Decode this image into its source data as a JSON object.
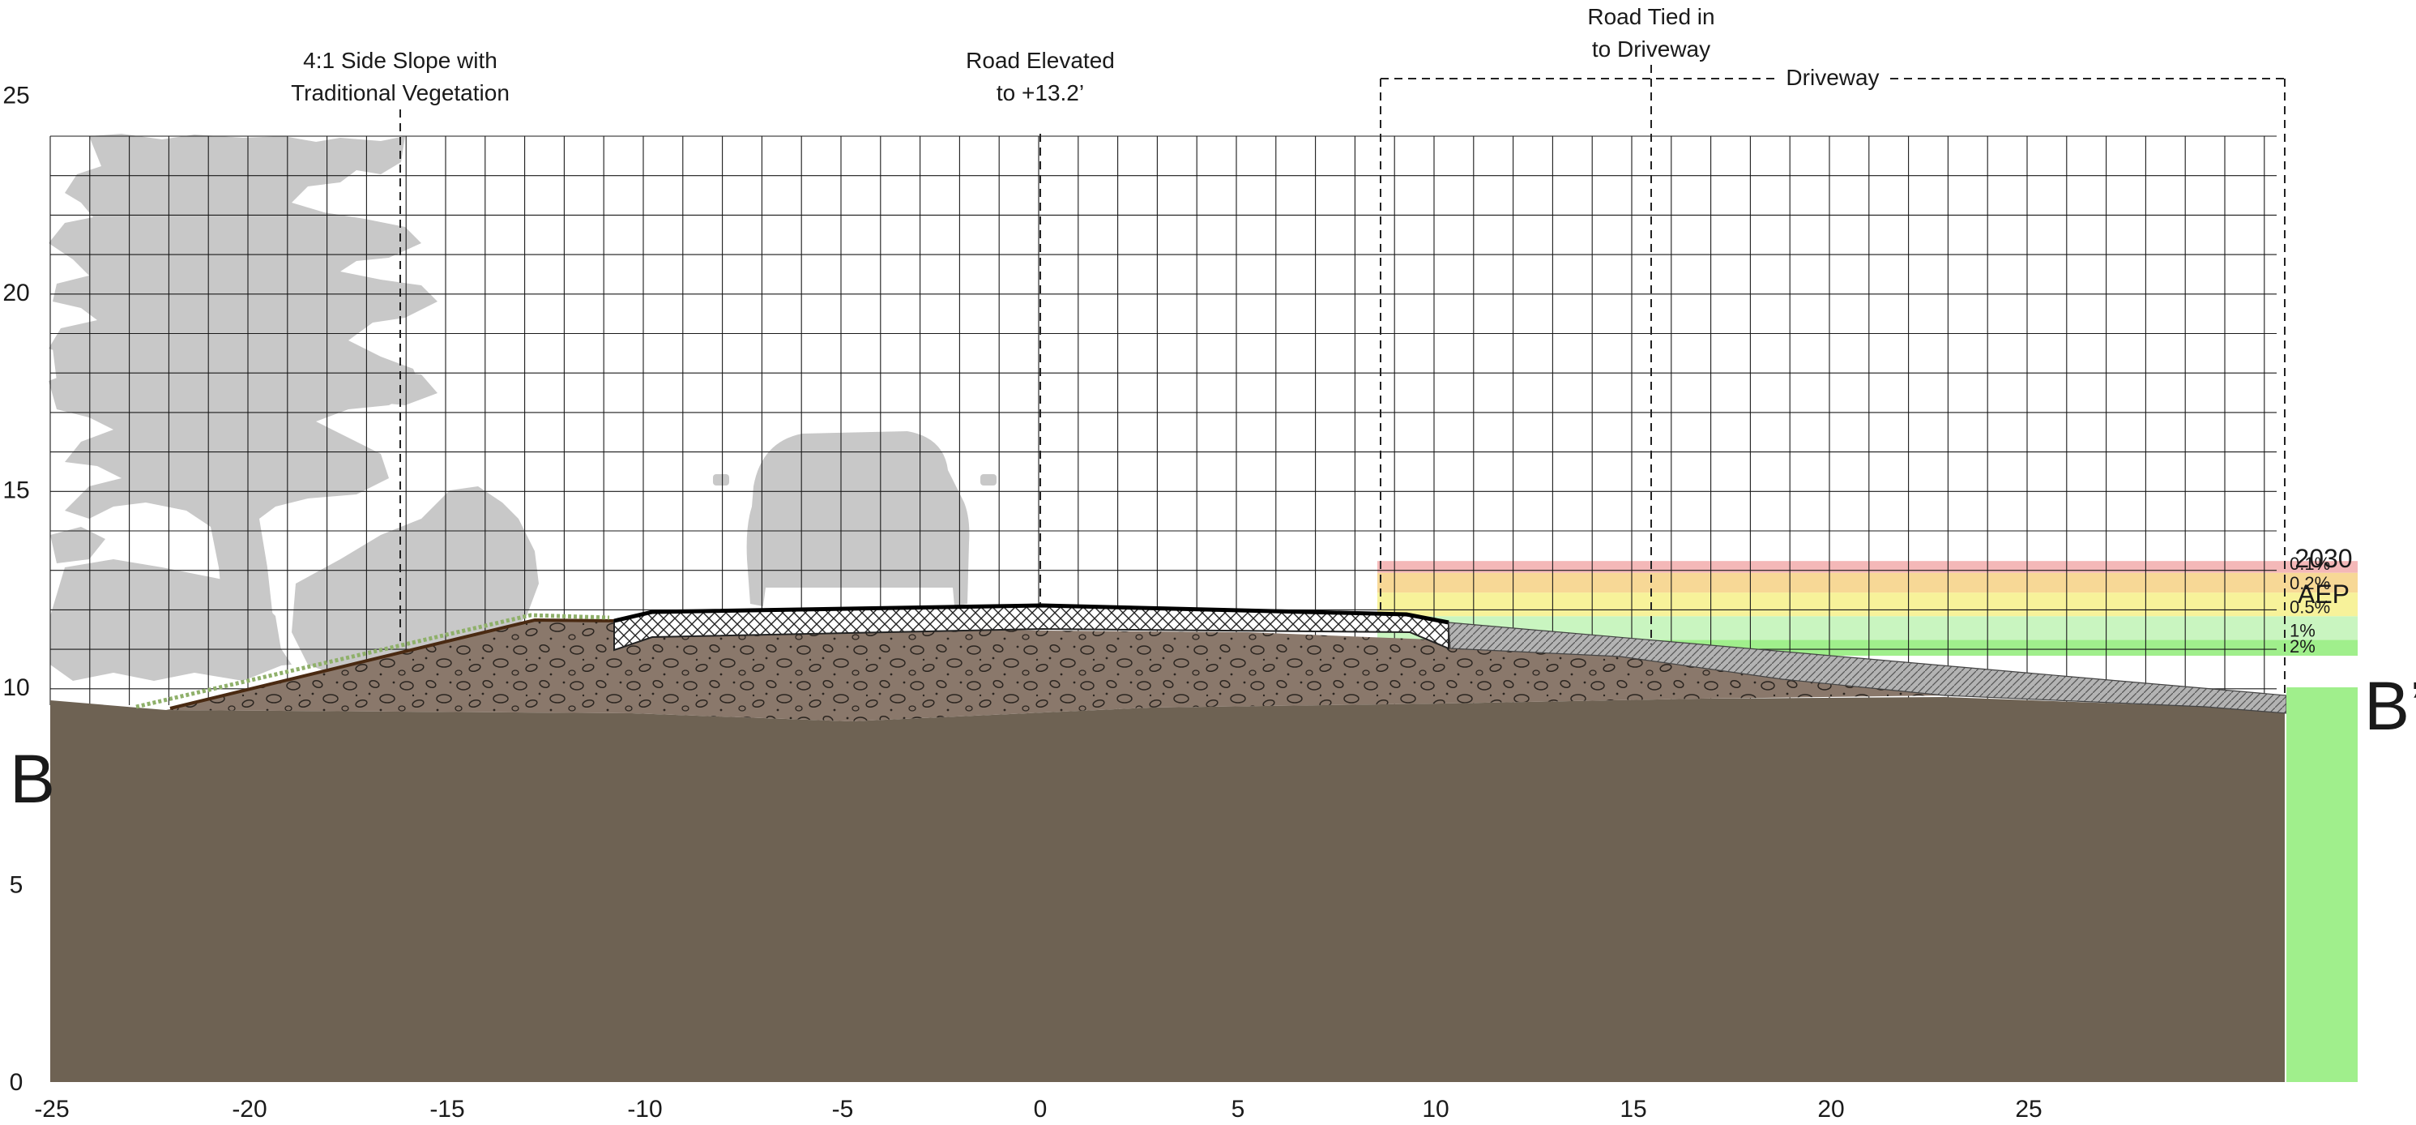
{
  "axes": {
    "x_ticks": [
      "-25",
      "-20",
      "-15",
      "-10",
      "-5",
      "0",
      "5",
      "10",
      "15",
      "20",
      "25"
    ],
    "y_ticks": [
      "0",
      "5",
      "10",
      "15",
      "20",
      "25"
    ]
  },
  "annotations": {
    "side_slope_line1": "4:1 Side Slope with",
    "side_slope_line2": "Traditional Vegetation",
    "road_elevated_line1": "Road Elevated",
    "road_elevated_line2": "to +13.2’",
    "road_tied_line1": "Road Tied in",
    "road_tied_line2": "to Driveway",
    "driveway": "Driveway"
  },
  "section_labels": {
    "start": "B",
    "end": "B’"
  },
  "aep": {
    "year": "2030",
    "label": "AEP",
    "bands": [
      {
        "pct": "0.1%",
        "elevation": 12.9,
        "color": "#f4b8b8"
      },
      {
        "pct": "0.2%",
        "elevation": 12.4,
        "color": "#f7d896"
      },
      {
        "pct": "0.5%",
        "elevation": 11.8,
        "color": "#f7f29a"
      },
      {
        "pct": "1%",
        "elevation": 11.2,
        "color": "#c9f5c0"
      },
      {
        "pct": "2%",
        "elevation": 10.8,
        "color": "#a0ef8c"
      }
    ]
  },
  "colors": {
    "ground": "#6e6253",
    "fill": "#8a786b",
    "grid": "#1a1a1a",
    "silhouette": "#c8c8c8",
    "vegetation": "#8fb06a"
  }
}
